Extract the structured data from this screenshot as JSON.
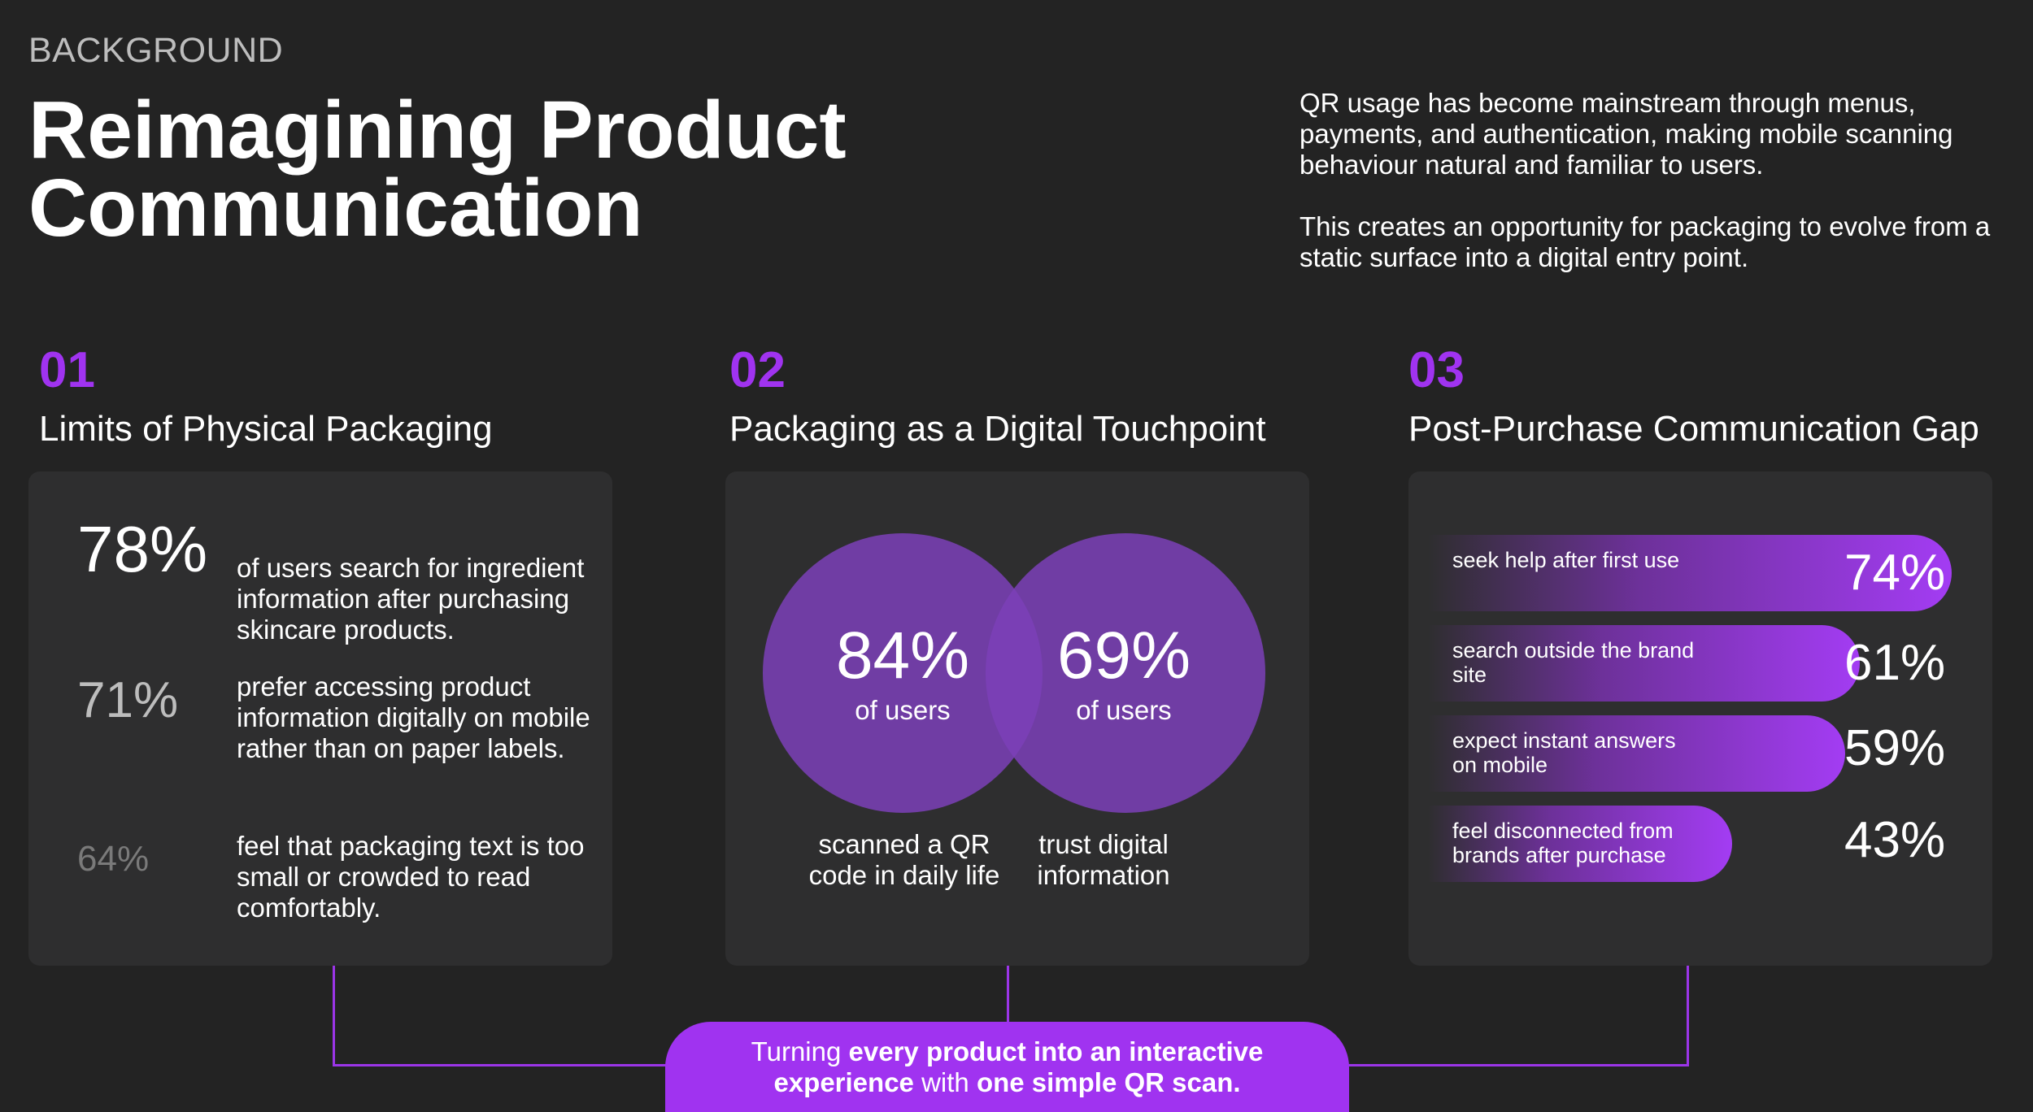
{
  "header": {
    "eyebrow": "BACKGROUND",
    "title_line1": "Reimagining Product",
    "title_line2": "Communication",
    "intro_p1": "QR usage has become mainstream through menus, payments, and authentication, making mobile scanning behaviour natural and familiar to users.",
    "intro_p2": "This creates an opportunity for packaging to evolve from a static surface into a digital entry point."
  },
  "sections": [
    {
      "number": "01",
      "title": "Limits of Physical Packaging",
      "stats": [
        {
          "value": "78%",
          "text": "of users search for ingredient information after purchasing skincare products."
        },
        {
          "value": "71%",
          "text": "prefer accessing product information digitally on mobile rather than on paper labels."
        },
        {
          "value": "64%",
          "text": "feel that packaging text is too small or crowded to read comfortably."
        }
      ]
    },
    {
      "number": "02",
      "title": "Packaging as a Digital Touchpoint",
      "venn": [
        {
          "value": "84%",
          "sub": "of users",
          "caption": "scanned a QR code in daily life"
        },
        {
          "value": "69%",
          "sub": "of users",
          "caption": "trust digital information"
        }
      ]
    },
    {
      "number": "03",
      "title": "Post-Purchase Communication Gap",
      "bars": [
        {
          "label": "seek help after first use",
          "value": "74%",
          "percent": 74
        },
        {
          "label": "search outside the brand site",
          "value": "61%",
          "percent": 61
        },
        {
          "label": "expect instant answers on mobile",
          "value": "59%",
          "percent": 59
        },
        {
          "label": "feel disconnected from brands after purchase",
          "value": "43%",
          "percent": 43
        }
      ]
    }
  ],
  "cta": {
    "t1": "Turning ",
    "t2": "every product into an interactive",
    "t3": "experience",
    "t4": " with ",
    "t5": "one simple QR scan."
  },
  "colors": {
    "accent": "#a033f0",
    "background": "#232323",
    "card": "#2e2e2f",
    "venn_fill": "#7b3fb8"
  }
}
